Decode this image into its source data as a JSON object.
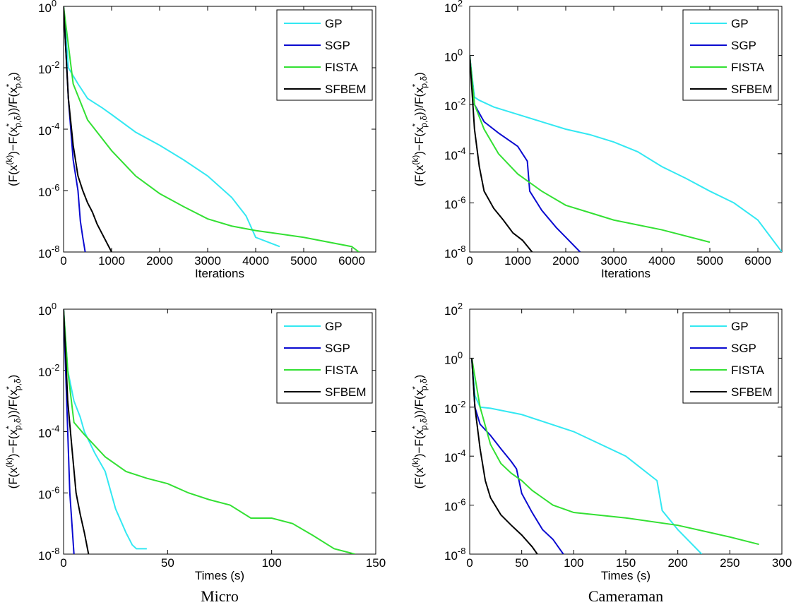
{
  "chart_data": [
    {
      "type": "line",
      "yscale": "log",
      "legend": "upper right",
      "xlabel": "Iterations",
      "ylabel": [
        {
          "text": "(F(x"
        },
        {
          "text": "(k)",
          "pos": "sup"
        },
        {
          "text": ")−F(x"
        },
        {
          "text": "*",
          "pos": "sup"
        },
        {
          "text": "ρ,δ",
          "pos": "sub"
        },
        {
          "text": "))/F(x"
        },
        {
          "text": "*",
          "pos": "sup"
        },
        {
          "text": "ρ,δ",
          "pos": "sub"
        },
        {
          "text": ")"
        }
      ],
      "xlim": [
        0,
        6500
      ],
      "xticks": [
        0,
        1000,
        2000,
        3000,
        4000,
        5000,
        6000
      ],
      "ylim": [
        1e-08,
        1
      ],
      "yticks": [
        {
          "value": 1,
          "label": "10^0"
        },
        {
          "value": 0.01,
          "label": "10^-2"
        },
        {
          "value": 0.0001,
          "label": "10^-4"
        },
        {
          "value": 1e-06,
          "label": "10^-6"
        },
        {
          "value": 1e-08,
          "label": "10^-8"
        }
      ],
      "series": [
        {
          "name": "GP",
          "color": "#33e8f2",
          "x": [
            0,
            100,
            300,
            500,
            800,
            1000,
            1500,
            2000,
            2500,
            3000,
            3500,
            3800,
            4000,
            4500
          ],
          "values": [
            1,
            0.01,
            0.003,
            0.001,
            0.0005,
            0.0003,
            8e-05,
            3e-05,
            1e-05,
            3e-06,
            6e-07,
            1.5e-07,
            3e-08,
            1.5e-08
          ]
        },
        {
          "name": "SGP",
          "color": "#0a0ad0",
          "x": [
            0,
            100,
            200,
            300,
            350,
            400,
            450
          ],
          "values": [
            1,
            0.001,
            1e-05,
            1e-06,
            1e-07,
            3e-08,
            1e-08
          ]
        },
        {
          "name": "FISTA",
          "color": "#33e033",
          "x": [
            0,
            200,
            500,
            1000,
            1500,
            2000,
            2500,
            3000,
            3500,
            4000,
            5000,
            6000,
            6150
          ],
          "values": [
            1,
            0.003,
            0.0002,
            2e-05,
            3e-06,
            8e-07,
            3e-07,
            1.2e-07,
            7e-08,
            5e-08,
            3e-08,
            1.5e-08,
            1e-08
          ]
        },
        {
          "name": "SFBEM",
          "color": "#000000",
          "x": [
            0,
            100,
            200,
            300,
            400,
            500,
            600,
            700,
            800,
            900,
            1000
          ],
          "values": [
            1,
            0.001,
            3e-05,
            3e-06,
            1e-06,
            4e-07,
            2e-07,
            8e-08,
            4e-08,
            2e-08,
            1e-08
          ]
        }
      ]
    },
    {
      "type": "line",
      "yscale": "log",
      "legend": "upper right",
      "xlabel": "Iterations",
      "ylabel": [
        {
          "text": "(F(x"
        },
        {
          "text": "(k)",
          "pos": "sup"
        },
        {
          "text": ")−F(x"
        },
        {
          "text": "*",
          "pos": "sup"
        },
        {
          "text": "ρ,δ",
          "pos": "sub"
        },
        {
          "text": "))/F(x"
        },
        {
          "text": "*",
          "pos": "sup"
        },
        {
          "text": "ρ,δ",
          "pos": "sub"
        },
        {
          "text": ")"
        }
      ],
      "xlim": [
        0,
        6500
      ],
      "xticks": [
        0,
        1000,
        2000,
        3000,
        4000,
        5000,
        6000
      ],
      "ylim": [
        1e-08,
        100
      ],
      "yticks": [
        {
          "value": 100,
          "label": "10^2"
        },
        {
          "value": 1,
          "label": "10^0"
        },
        {
          "value": 0.01,
          "label": "10^-2"
        },
        {
          "value": 0.0001,
          "label": "10^-4"
        },
        {
          "value": 1e-06,
          "label": "10^-6"
        },
        {
          "value": 1e-08,
          "label": "10^-8"
        }
      ],
      "series": [
        {
          "name": "GP",
          "color": "#33e8f2",
          "x": [
            0,
            100,
            200,
            500,
            1000,
            1500,
            2000,
            2500,
            3000,
            3500,
            4000,
            4500,
            5000,
            5500,
            6000,
            6500
          ],
          "values": [
            1,
            0.02,
            0.015,
            0.008,
            0.004,
            0.002,
            0.001,
            0.0006,
            0.0003,
            0.00012,
            3e-05,
            1e-05,
            3e-06,
            1e-06,
            2e-07,
            1e-08
          ]
        },
        {
          "name": "SGP",
          "color": "#0a0ad0",
          "x": [
            0,
            100,
            300,
            600,
            1000,
            1200,
            1250,
            1500,
            1800,
            2000,
            2300
          ],
          "values": [
            1,
            0.01,
            0.002,
            0.0007,
            0.0002,
            5e-05,
            3e-06,
            5e-07,
            1e-07,
            4e-08,
            1e-08
          ]
        },
        {
          "name": "FISTA",
          "color": "#33e033",
          "x": [
            0,
            100,
            300,
            600,
            1000,
            1500,
            2000,
            2500,
            3000,
            4000,
            5000
          ],
          "values": [
            1,
            0.01,
            0.001,
            0.0001,
            1.5e-05,
            3e-06,
            8e-07,
            4e-07,
            2e-07,
            8e-08,
            2.5e-08
          ]
        },
        {
          "name": "SFBEM",
          "color": "#000000",
          "x": [
            0,
            100,
            200,
            300,
            500,
            700,
            900,
            1100,
            1300
          ],
          "values": [
            1,
            0.001,
            3e-05,
            3e-06,
            6e-07,
            2e-07,
            6e-08,
            3e-08,
            1e-08
          ]
        }
      ]
    },
    {
      "type": "line",
      "yscale": "log",
      "legend": "upper right",
      "xlabel": "Times (s)",
      "ylabel": [
        {
          "text": "(F(x"
        },
        {
          "text": "(k)",
          "pos": "sup"
        },
        {
          "text": ")−F(x"
        },
        {
          "text": "*",
          "pos": "sup"
        },
        {
          "text": "ρ,δ",
          "pos": "sub"
        },
        {
          "text": "))/F(x"
        },
        {
          "text": "*",
          "pos": "sup"
        },
        {
          "text": "ρ,δ",
          "pos": "sub"
        },
        {
          "text": ")"
        }
      ],
      "xlim": [
        0,
        150
      ],
      "xticks": [
        0,
        50,
        100,
        150
      ],
      "ylim": [
        1e-08,
        1
      ],
      "yticks": [
        {
          "value": 1,
          "label": "10^0"
        },
        {
          "value": 0.01,
          "label": "10^-2"
        },
        {
          "value": 0.0001,
          "label": "10^-4"
        },
        {
          "value": 1e-06,
          "label": "10^-6"
        },
        {
          "value": 1e-08,
          "label": "10^-8"
        }
      ],
      "series": [
        {
          "name": "GP",
          "color": "#33e8f2",
          "x": [
            0,
            2,
            5,
            8,
            10,
            15,
            20,
            25,
            30,
            33,
            35,
            40
          ],
          "values": [
            1,
            0.01,
            0.001,
            0.0003,
            0.0001,
            2e-05,
            5e-06,
            3e-07,
            5e-08,
            2e-08,
            1.5e-08,
            1.5e-08
          ]
        },
        {
          "name": "SGP",
          "color": "#0a0ad0",
          "x": [
            0,
            1,
            2,
            3,
            4,
            5
          ],
          "values": [
            1,
            0.01,
            0.0001,
            1e-06,
            1e-07,
            1e-08
          ]
        },
        {
          "name": "FISTA",
          "color": "#33e033",
          "x": [
            0,
            2,
            5,
            10,
            20,
            30,
            40,
            50,
            60,
            70,
            80,
            90,
            100,
            110,
            120,
            130,
            140
          ],
          "values": [
            1,
            0.01,
            0.0002,
            8e-05,
            1.5e-05,
            5e-06,
            3e-06,
            2e-06,
            1e-06,
            6e-07,
            4e-07,
            1.5e-07,
            1.5e-07,
            1e-07,
            4e-08,
            1.5e-08,
            1e-08
          ]
        },
        {
          "name": "SFBEM",
          "color": "#000000",
          "x": [
            0,
            2,
            4,
            6,
            8,
            10,
            12
          ],
          "values": [
            1,
            0.001,
            3e-05,
            1e-06,
            2e-07,
            5e-08,
            1e-08
          ]
        }
      ]
    },
    {
      "type": "line",
      "yscale": "log",
      "legend": "upper right",
      "xlabel": "Times (s)",
      "ylabel": [
        {
          "text": "(F(x"
        },
        {
          "text": "(k)",
          "pos": "sup"
        },
        {
          "text": ")−F(x"
        },
        {
          "text": "*",
          "pos": "sup"
        },
        {
          "text": "ρ,δ",
          "pos": "sub"
        },
        {
          "text": "))/F(x"
        },
        {
          "text": "*",
          "pos": "sup"
        },
        {
          "text": "ρ,δ",
          "pos": "sub"
        },
        {
          "text": ")"
        }
      ],
      "xlim": [
        0,
        300
      ],
      "xticks": [
        0,
        50,
        100,
        150,
        200,
        250,
        300
      ],
      "ylim": [
        1e-08,
        100
      ],
      "yticks": [
        {
          "value": 100,
          "label": "10^2"
        },
        {
          "value": 1,
          "label": "10^0"
        },
        {
          "value": 0.01,
          "label": "10^-2"
        },
        {
          "value": 0.0001,
          "label": "10^-4"
        },
        {
          "value": 1e-06,
          "label": "10^-6"
        },
        {
          "value": 1e-08,
          "label": "10^-8"
        }
      ],
      "series": [
        {
          "name": "GP",
          "color": "#33e8f2",
          "x": [
            2,
            5,
            10,
            20,
            50,
            100,
            150,
            180,
            185,
            200,
            223
          ],
          "values": [
            1,
            0.03,
            0.01,
            0.009,
            0.005,
            0.001,
            0.0001,
            1e-05,
            6e-07,
            1e-07,
            1e-08
          ]
        },
        {
          "name": "SGP",
          "color": "#0a0ad0",
          "x": [
            2,
            5,
            10,
            20,
            30,
            40,
            45,
            50,
            60,
            70,
            80,
            90
          ],
          "values": [
            1,
            0.01,
            0.002,
            0.0007,
            0.0002,
            6e-05,
            3e-05,
            3e-06,
            5e-07,
            1e-07,
            4e-08,
            1e-08
          ]
        },
        {
          "name": "FISTA",
          "color": "#33e033",
          "x": [
            2,
            10,
            20,
            30,
            40,
            50,
            60,
            80,
            100,
            150,
            200,
            250,
            278
          ],
          "values": [
            1,
            0.01,
            0.0003,
            5e-05,
            2e-05,
            1e-05,
            4e-06,
            1e-06,
            5e-07,
            3e-07,
            1.5e-07,
            5e-08,
            2.5e-08
          ]
        },
        {
          "name": "SFBEM",
          "color": "#000000",
          "x": [
            2,
            5,
            10,
            15,
            20,
            30,
            40,
            50,
            60,
            65
          ],
          "values": [
            1,
            0.01,
            0.0002,
            1e-05,
            2e-06,
            4e-07,
            1.5e-07,
            6e-08,
            2e-08,
            1e-08
          ]
        }
      ]
    }
  ],
  "captions": [
    "Micro",
    "Cameraman"
  ]
}
